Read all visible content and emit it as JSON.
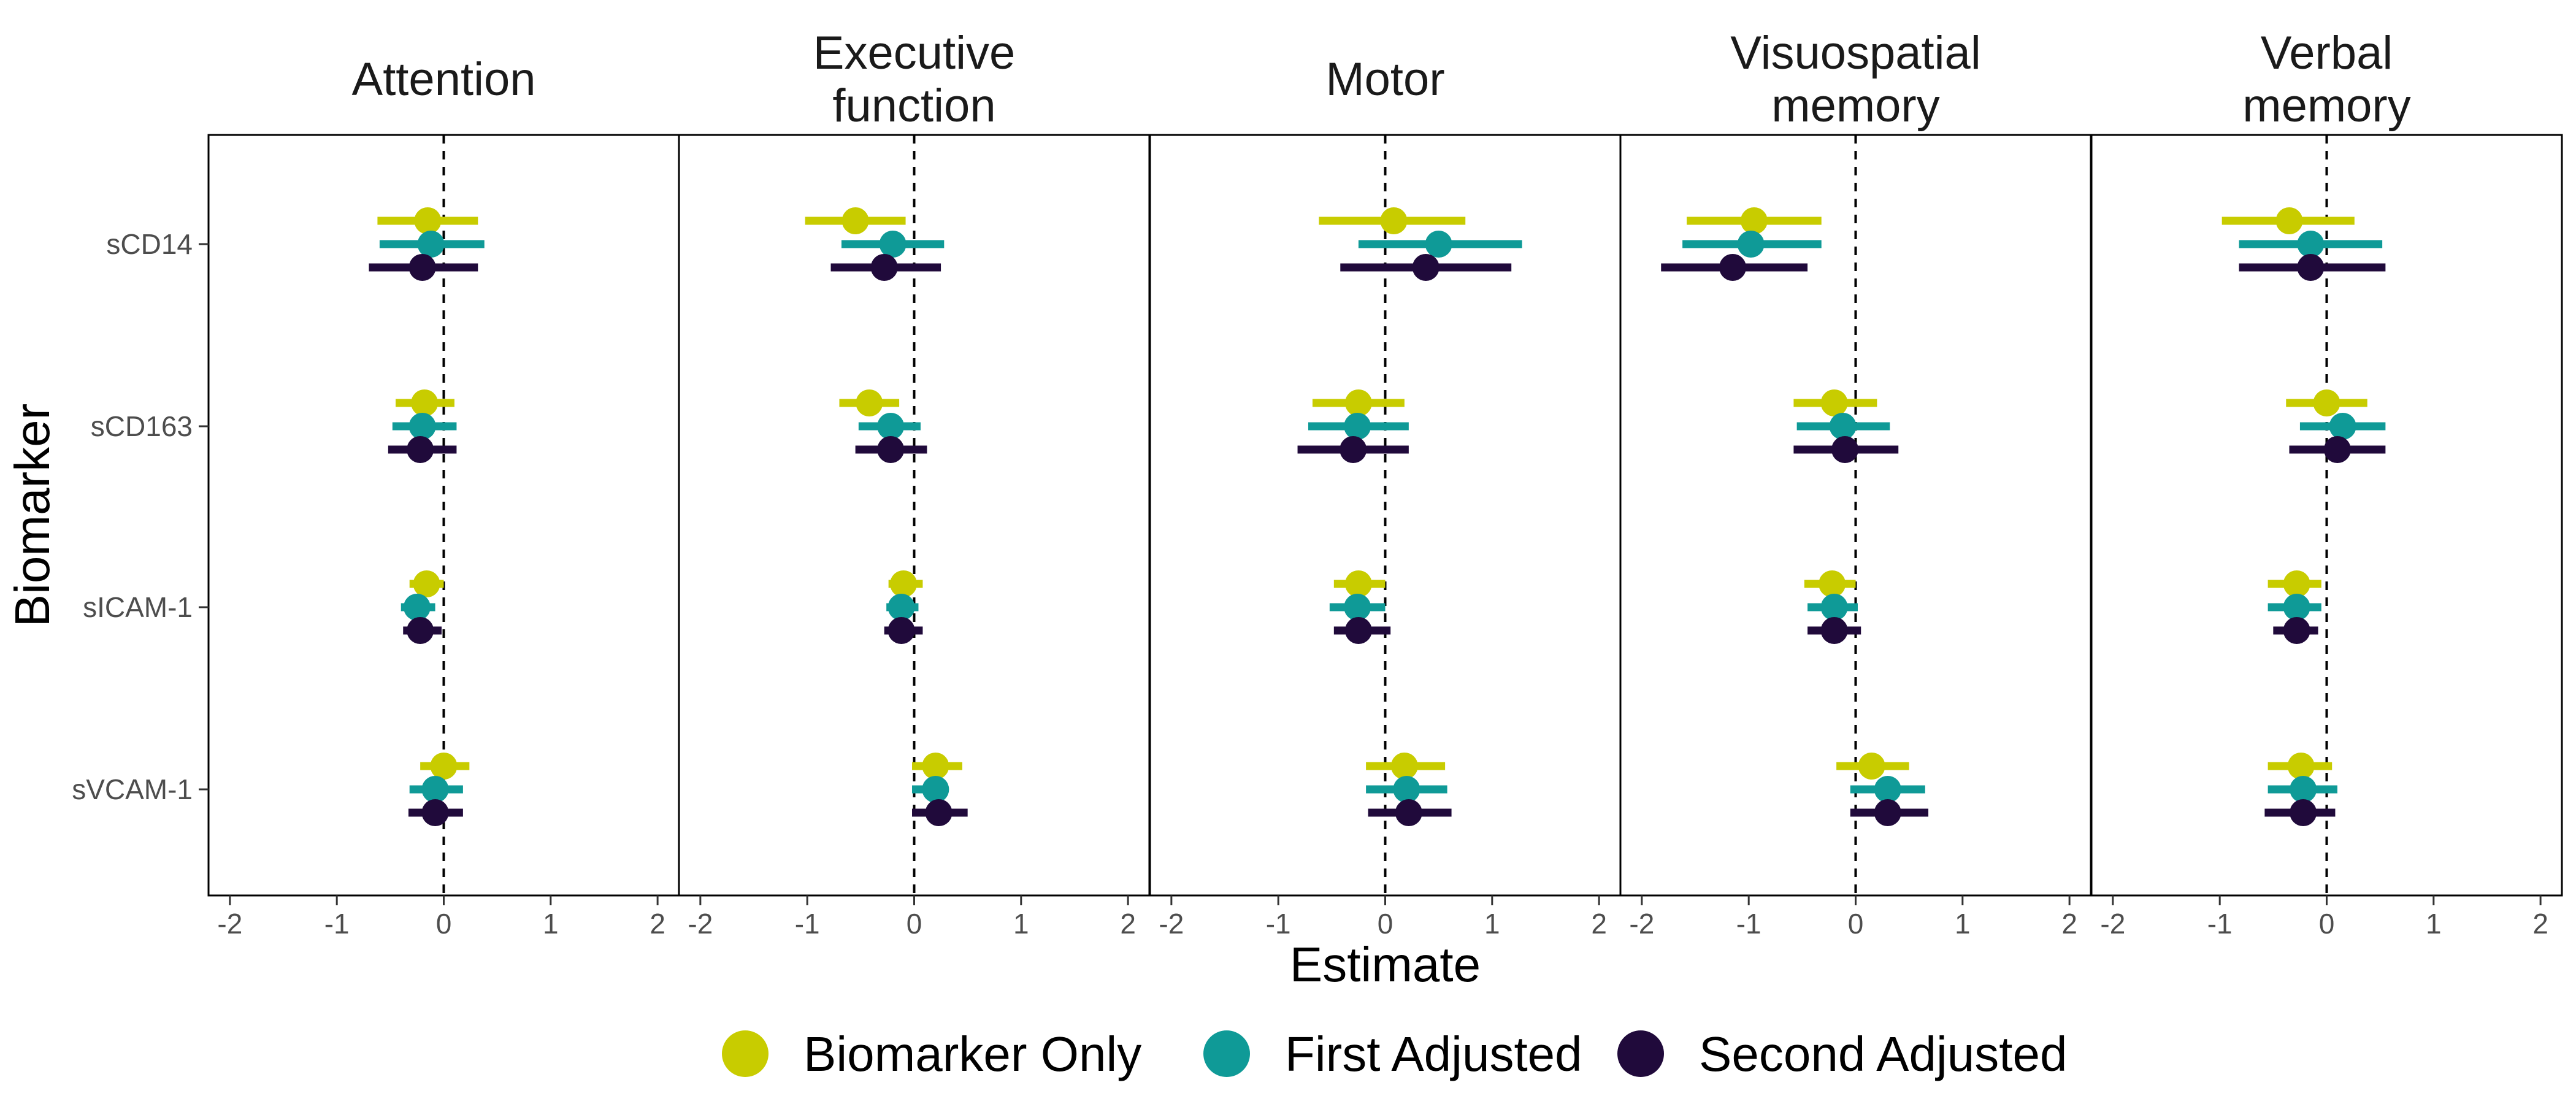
{
  "chart_data": {
    "type": "forest",
    "xlabel": "Estimate",
    "ylabel": "Biomarker",
    "xlim": [
      -2.2,
      2.2
    ],
    "xticks": [
      -2,
      -1,
      0,
      1,
      2
    ],
    "xtick_labels": [
      "-2",
      "-1",
      "0",
      "1",
      "2"
    ],
    "reference_line": 0,
    "grid": false,
    "legend_position": "bottom",
    "colors": {
      "Biomarker Only": "#c8cc00",
      "First Adjusted": "#0f9a97",
      "Second Adjusted": "#200a3b"
    },
    "biomarkers": [
      "sCD14",
      "sCD163",
      "sICAM-1",
      "sVCAM-1"
    ],
    "series": [
      {
        "name": "Biomarker Only"
      },
      {
        "name": "First Adjusted"
      },
      {
        "name": "Second Adjusted"
      }
    ],
    "panels": [
      {
        "title": [
          "Attention"
        ],
        "estimates": {
          "sCD14": [
            [
              -0.15,
              -0.62,
              0.32
            ],
            [
              -0.12,
              -0.6,
              0.38
            ],
            [
              -0.2,
              -0.7,
              0.32
            ]
          ],
          "sCD163": [
            [
              -0.18,
              -0.45,
              0.1
            ],
            [
              -0.2,
              -0.48,
              0.12
            ],
            [
              -0.22,
              -0.52,
              0.12
            ]
          ],
          "sICAM-1": [
            [
              -0.16,
              -0.32,
              0.0
            ],
            [
              -0.25,
              -0.4,
              -0.08
            ],
            [
              -0.22,
              -0.38,
              -0.02
            ]
          ],
          "sVCAM-1": [
            [
              0.0,
              -0.22,
              0.24
            ],
            [
              -0.08,
              -0.32,
              0.18
            ],
            [
              -0.08,
              -0.33,
              0.18
            ]
          ]
        }
      },
      {
        "title": [
          "Executive",
          "function"
        ],
        "estimates": {
          "sCD14": [
            [
              -0.55,
              -1.02,
              -0.08
            ],
            [
              -0.2,
              -0.68,
              0.28
            ],
            [
              -0.28,
              -0.78,
              0.25
            ]
          ],
          "sCD163": [
            [
              -0.42,
              -0.7,
              -0.14
            ],
            [
              -0.22,
              -0.52,
              0.06
            ],
            [
              -0.22,
              -0.55,
              0.12
            ]
          ],
          "sICAM-1": [
            [
              -0.1,
              -0.24,
              0.08
            ],
            [
              -0.12,
              -0.26,
              0.04
            ],
            [
              -0.12,
              -0.28,
              0.08
            ]
          ],
          "sVCAM-1": [
            [
              0.2,
              -0.02,
              0.45
            ],
            [
              0.2,
              -0.02,
              0.24
            ],
            [
              0.23,
              -0.02,
              0.5
            ]
          ]
        }
      },
      {
        "title": [
          "Motor"
        ],
        "estimates": {
          "sCD14": [
            [
              0.08,
              -0.62,
              0.75
            ],
            [
              0.5,
              -0.25,
              1.28
            ],
            [
              0.38,
              -0.42,
              1.18
            ]
          ],
          "sCD163": [
            [
              -0.25,
              -0.68,
              0.18
            ],
            [
              -0.26,
              -0.72,
              0.22
            ],
            [
              -0.3,
              -0.82,
              0.22
            ]
          ],
          "sICAM-1": [
            [
              -0.25,
              -0.48,
              0.0
            ],
            [
              -0.26,
              -0.52,
              0.0
            ],
            [
              -0.25,
              -0.48,
              0.05
            ]
          ],
          "sVCAM-1": [
            [
              0.18,
              -0.18,
              0.56
            ],
            [
              0.2,
              -0.18,
              0.58
            ],
            [
              0.22,
              -0.16,
              0.62
            ]
          ]
        }
      },
      {
        "title": [
          "Visuospatial",
          "memory"
        ],
        "estimates": {
          "sCD14": [
            [
              -0.95,
              -1.58,
              -0.32
            ],
            [
              -0.98,
              -1.62,
              -0.32
            ],
            [
              -1.15,
              -1.82,
              -0.45
            ]
          ],
          "sCD163": [
            [
              -0.2,
              -0.58,
              0.2
            ],
            [
              -0.12,
              -0.55,
              0.32
            ],
            [
              -0.1,
              -0.58,
              0.4
            ]
          ],
          "sICAM-1": [
            [
              -0.22,
              -0.48,
              0.0
            ],
            [
              -0.2,
              -0.45,
              0.02
            ],
            [
              -0.2,
              -0.45,
              0.05
            ]
          ],
          "sVCAM-1": [
            [
              0.15,
              -0.18,
              0.5
            ],
            [
              0.3,
              -0.05,
              0.65
            ],
            [
              0.3,
              -0.05,
              0.68
            ]
          ]
        }
      },
      {
        "title": [
          "Verbal",
          "memory"
        ],
        "estimates": {
          "sCD14": [
            [
              -0.35,
              -0.98,
              0.26
            ],
            [
              -0.15,
              -0.82,
              0.52
            ],
            [
              -0.15,
              -0.82,
              0.55
            ]
          ],
          "sCD163": [
            [
              0.0,
              -0.38,
              0.38
            ],
            [
              0.15,
              -0.25,
              0.55
            ],
            [
              0.1,
              -0.35,
              0.55
            ]
          ],
          "sICAM-1": [
            [
              -0.28,
              -0.55,
              -0.05
            ],
            [
              -0.28,
              -0.55,
              -0.05
            ],
            [
              -0.28,
              -0.5,
              -0.08
            ]
          ],
          "sVCAM-1": [
            [
              -0.24,
              -0.55,
              0.05
            ],
            [
              -0.22,
              -0.55,
              0.1
            ],
            [
              -0.22,
              -0.58,
              0.08
            ]
          ]
        }
      }
    ]
  }
}
